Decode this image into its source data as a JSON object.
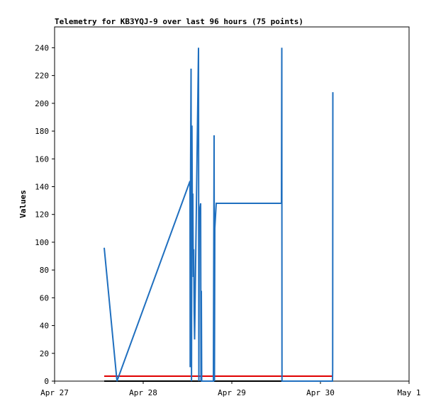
{
  "chart_data": {
    "type": "line",
    "title": "Telemetry for KB3YQJ-9 over last 96 hours (75 points)",
    "y_label": "Values",
    "xlim": [
      0,
      4
    ],
    "xticks": [
      {
        "value": 0,
        "label": "Apr 27"
      },
      {
        "value": 1,
        "label": "Apr 28"
      },
      {
        "value": 2,
        "label": "Apr 29"
      },
      {
        "value": 3,
        "label": "Apr 30"
      },
      {
        "value": 4,
        "label": "May 1"
      }
    ],
    "ylim": [
      0,
      255
    ],
    "yticks": [
      0,
      20,
      40,
      60,
      80,
      100,
      120,
      140,
      160,
      180,
      200,
      220,
      240
    ],
    "series": [
      {
        "color": "#1f6fbf",
        "x": [
          0.56,
          0.704,
          1.528,
          1.53,
          1.535,
          1.54,
          1.545,
          1.55,
          1.555,
          1.56,
          1.565,
          1.57,
          1.575,
          1.58,
          1.624,
          1.628,
          1.632,
          1.648,
          1.652,
          1.656,
          1.66,
          1.792,
          1.796,
          1.8,
          1.804,
          1.808,
          1.824,
          2.56,
          2.562,
          2.564,
          2.566,
          3.136,
          3.138,
          3.14
        ],
        "values": [
          96,
          0,
          144,
          10,
          160,
          225,
          0,
          184,
          115,
          135,
          75,
          95,
          50,
          30,
          240,
          0,
          120,
          128,
          0,
          65,
          0,
          0,
          88,
          177,
          0,
          110,
          128,
          128,
          184,
          240,
          0,
          0,
          8,
          208
        ]
      },
      {
        "color": "#e00000",
        "x": [
          0.56,
          3.14
        ],
        "values": [
          3.6,
          3.6
        ]
      },
      {
        "color": "#000000",
        "x": [
          0.56,
          3.14
        ],
        "values": [
          0,
          0
        ]
      }
    ]
  }
}
